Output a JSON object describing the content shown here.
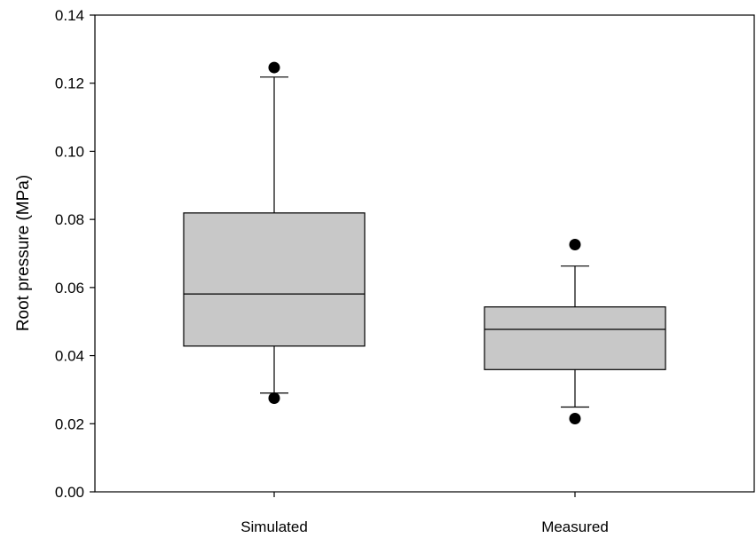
{
  "chart_data": {
    "type": "box",
    "title": "",
    "xlabel": "",
    "ylabel": "Root pressure (MPa)",
    "ylim": [
      0.0,
      0.14
    ],
    "yticks": [
      "0.00",
      "0.02",
      "0.04",
      "0.06",
      "0.08",
      "0.10",
      "0.12",
      "0.14"
    ],
    "grid": false,
    "legend": "none",
    "colors": {
      "box_fill": "#c8c8c8",
      "stroke": "#000000",
      "outlier": "#000000"
    },
    "categories": [
      "Simulated",
      "Measured"
    ],
    "boxes": [
      {
        "category": "Simulated",
        "whisker_low": 0.029,
        "q1": 0.0428,
        "median": 0.0581,
        "q3": 0.0819,
        "whisker_high": 0.1218,
        "outliers": [
          0.0275,
          0.1246
        ]
      },
      {
        "category": "Measured",
        "whisker_low": 0.0249,
        "q1": 0.0359,
        "median": 0.0477,
        "q3": 0.0543,
        "whisker_high": 0.0663,
        "outliers": [
          0.0215,
          0.0726
        ]
      }
    ]
  }
}
